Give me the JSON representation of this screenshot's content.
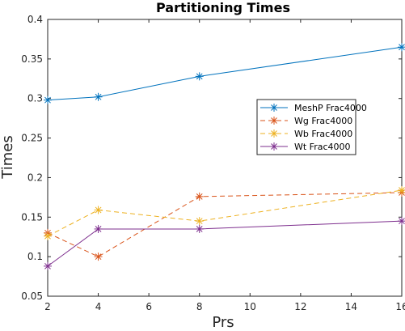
{
  "chart_data": {
    "type": "line",
    "title": "Partitioning Times",
    "xlabel": "Prs",
    "ylabel": "Times",
    "xlim": [
      2,
      16
    ],
    "ylim": [
      0.05,
      0.4
    ],
    "xticks": [
      2,
      4,
      6,
      8,
      10,
      12,
      14,
      16
    ],
    "yticks": [
      0.05,
      0.1,
      0.15,
      0.2,
      0.25,
      0.3,
      0.35,
      0.4
    ],
    "grid": false,
    "legend_position": "right",
    "x": [
      2,
      4,
      8,
      16
    ],
    "series": [
      {
        "name": "MeshP Frac4000",
        "values": [
          0.298,
          0.302,
          0.328,
          0.365
        ],
        "color": "#0072BD",
        "line": "solid",
        "marker": "asterisk"
      },
      {
        "name": "Wg Frac4000",
        "values": [
          0.13,
          0.1,
          0.176,
          0.181
        ],
        "color": "#D95319",
        "line": "dashed",
        "marker": "asterisk"
      },
      {
        "name": "Wb Frac4000",
        "values": [
          0.126,
          0.159,
          0.145,
          0.184
        ],
        "color": "#EDB120",
        "line": "dashed",
        "marker": "asterisk"
      },
      {
        "name": "Wt Frac4000",
        "values": [
          0.088,
          0.135,
          0.135,
          0.145
        ],
        "color": "#7E2F8E",
        "line": "solid",
        "marker": "asterisk"
      }
    ]
  }
}
